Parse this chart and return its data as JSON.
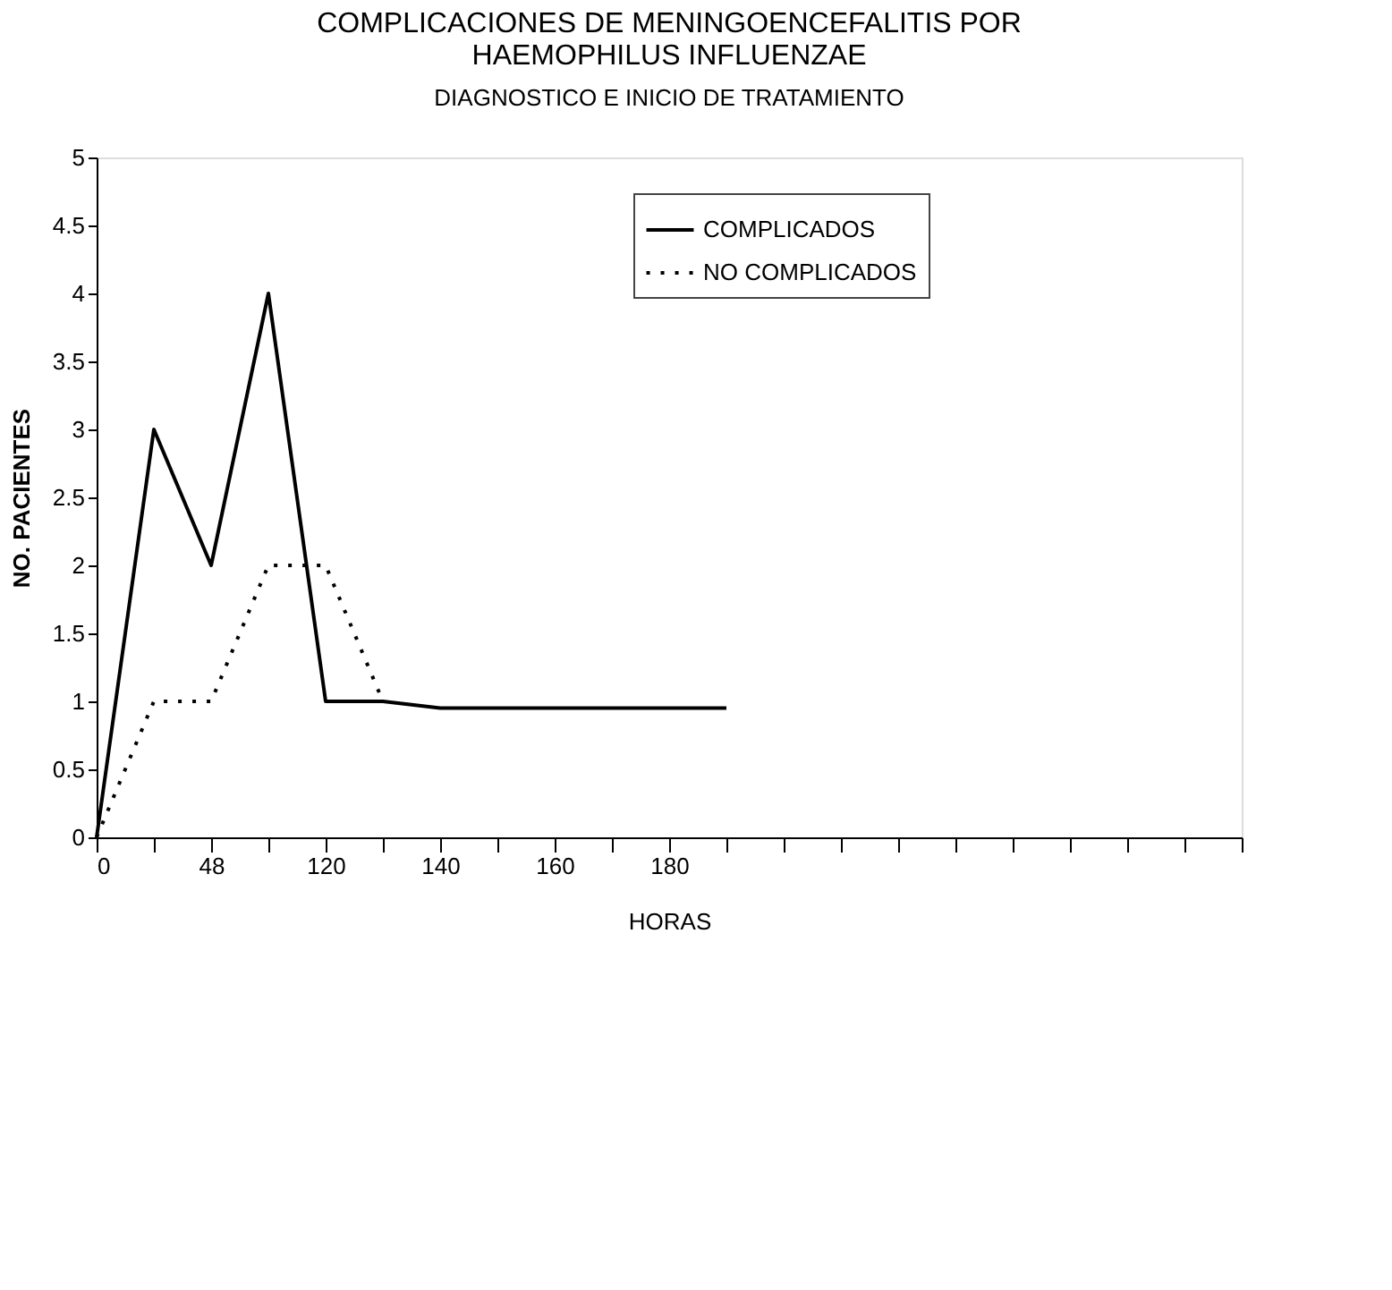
{
  "chart_data": {
    "type": "line",
    "title": "COMPLICACIONES DE MENINGOENCEFALITIS POR HAEMOPHILUS INFLUENZAE",
    "subtitle": "DIAGNOSTICO E INICIO DE TRATAMIENTO",
    "xlabel": "HORAS",
    "ylabel": "NO. PACIENTES",
    "categories": [
      "0",
      null,
      "48",
      null,
      "120",
      null,
      "140",
      null,
      "160",
      null,
      "180",
      null,
      null,
      null,
      null,
      null,
      null,
      null,
      null,
      null,
      null
    ],
    "series": [
      {
        "name": "COMPLICADOS",
        "color": "#000000",
        "line_style": "solid",
        "values": [
          0,
          3,
          2,
          4,
          1,
          1,
          0.95,
          0.95,
          0.95,
          0.95,
          0.95,
          0.95,
          null,
          null,
          null,
          null,
          null,
          null,
          null,
          null,
          null
        ]
      },
      {
        "name": "NO COMPLICADOS",
        "color": "#000000",
        "line_style": "dotted",
        "values": [
          0,
          1,
          1,
          2,
          2,
          1,
          null,
          null,
          null,
          null,
          null,
          null,
          null,
          null,
          null,
          null,
          null,
          null,
          null,
          null,
          null
        ]
      }
    ],
    "ylim": [
      0,
      5
    ],
    "yticks": [
      0,
      0.5,
      1,
      1.5,
      2,
      2.5,
      3,
      3.5,
      4,
      4.5,
      5
    ],
    "grid": false,
    "legend": "top right",
    "marker": "none"
  }
}
